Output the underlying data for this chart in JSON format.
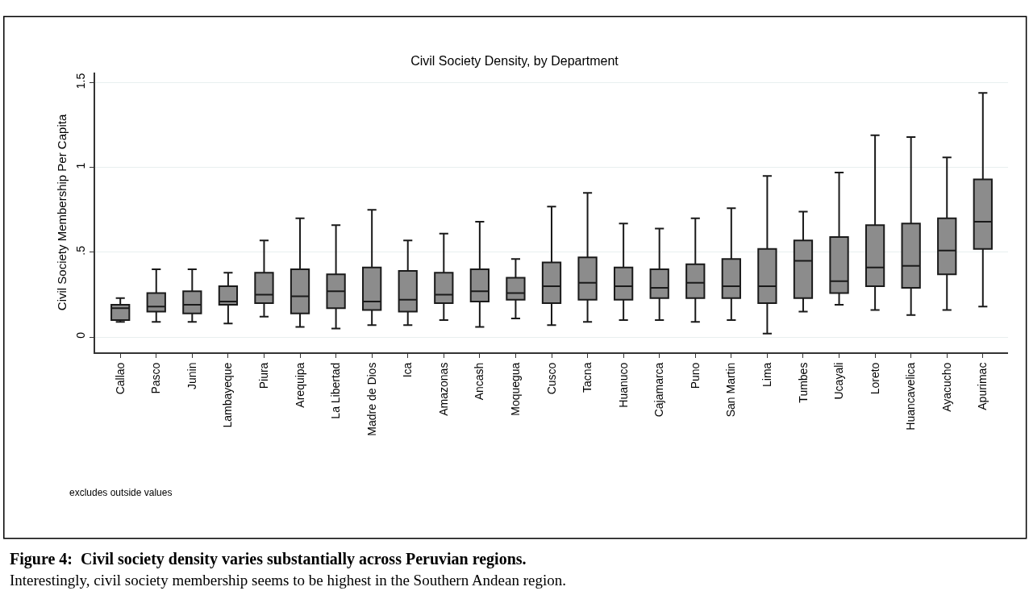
{
  "chart_data": {
    "type": "box",
    "title": "Civil Society Density, by Department",
    "ylabel": "Civil Society Membership Per Capita",
    "categories": [
      "Callao",
      "Pasco",
      "Junin",
      "Lambayeque",
      "Piura",
      "Arequipa",
      "La Libertad",
      "Madre de Dios",
      "Ica",
      "Amazonas",
      "Ancash",
      "Moquegua",
      "Cusco",
      "Tacna",
      "Huanuco",
      "Cajamarca",
      "Puno",
      "San Martin",
      "Lima",
      "Tumbes",
      "Ucayali",
      "Loreto",
      "Huancavelica",
      "Ayacucho",
      "Apurimac"
    ],
    "series": [
      {
        "color": "#8c8c8c",
        "boxes": [
          {
            "low": 0.09,
            "q1": 0.1,
            "median": 0.17,
            "q3": 0.19,
            "high": 0.23
          },
          {
            "low": 0.09,
            "q1": 0.15,
            "median": 0.18,
            "q3": 0.26,
            "high": 0.4
          },
          {
            "low": 0.09,
            "q1": 0.14,
            "median": 0.19,
            "q3": 0.27,
            "high": 0.4
          },
          {
            "low": 0.08,
            "q1": 0.19,
            "median": 0.21,
            "q3": 0.3,
            "high": 0.38
          },
          {
            "low": 0.12,
            "q1": 0.2,
            "median": 0.25,
            "q3": 0.38,
            "high": 0.57
          },
          {
            "low": 0.06,
            "q1": 0.14,
            "median": 0.24,
            "q3": 0.4,
            "high": 0.7
          },
          {
            "low": 0.05,
            "q1": 0.17,
            "median": 0.27,
            "q3": 0.37,
            "high": 0.66
          },
          {
            "low": 0.07,
            "q1": 0.16,
            "median": 0.21,
            "q3": 0.41,
            "high": 0.75
          },
          {
            "low": 0.07,
            "q1": 0.15,
            "median": 0.22,
            "q3": 0.39,
            "high": 0.57
          },
          {
            "low": 0.1,
            "q1": 0.2,
            "median": 0.25,
            "q3": 0.38,
            "high": 0.61
          },
          {
            "low": 0.06,
            "q1": 0.21,
            "median": 0.27,
            "q3": 0.4,
            "high": 0.68
          },
          {
            "low": 0.11,
            "q1": 0.22,
            "median": 0.26,
            "q3": 0.35,
            "high": 0.46
          },
          {
            "low": 0.07,
            "q1": 0.2,
            "median": 0.3,
            "q3": 0.44,
            "high": 0.77
          },
          {
            "low": 0.09,
            "q1": 0.22,
            "median": 0.32,
            "q3": 0.47,
            "high": 0.85
          },
          {
            "low": 0.1,
            "q1": 0.22,
            "median": 0.3,
            "q3": 0.41,
            "high": 0.67
          },
          {
            "low": 0.1,
            "q1": 0.23,
            "median": 0.29,
            "q3": 0.4,
            "high": 0.64
          },
          {
            "low": 0.09,
            "q1": 0.23,
            "median": 0.32,
            "q3": 0.43,
            "high": 0.7
          },
          {
            "low": 0.1,
            "q1": 0.23,
            "median": 0.3,
            "q3": 0.46,
            "high": 0.76
          },
          {
            "low": 0.02,
            "q1": 0.2,
            "median": 0.3,
            "q3": 0.52,
            "high": 0.95
          },
          {
            "low": 0.15,
            "q1": 0.23,
            "median": 0.45,
            "q3": 0.57,
            "high": 0.74
          },
          {
            "low": 0.19,
            "q1": 0.26,
            "median": 0.33,
            "q3": 0.59,
            "high": 0.97
          },
          {
            "low": 0.16,
            "q1": 0.3,
            "median": 0.41,
            "q3": 0.66,
            "high": 1.19
          },
          {
            "low": 0.13,
            "q1": 0.29,
            "median": 0.42,
            "q3": 0.67,
            "high": 1.18
          },
          {
            "low": 0.16,
            "q1": 0.37,
            "median": 0.51,
            "q3": 0.7,
            "high": 1.06
          },
          {
            "low": 0.18,
            "q1": 0.52,
            "median": 0.68,
            "q3": 0.93,
            "high": 1.44
          }
        ]
      }
    ],
    "ylim": [
      -0.09,
      1.56
    ],
    "yticks": [
      {
        "value": 0,
        "label": "0"
      },
      {
        "value": 0.5,
        "label": ".5"
      },
      {
        "value": 1,
        "label": "1"
      },
      {
        "value": 1.5,
        "label": "1.5"
      }
    ],
    "grid": "y",
    "annotations": [
      "excludes outside values",
      "Figure 4:  Civil society density varies substantially across Peruvian regions.",
      "Interestingly, civil society membership seems to be highest in the Southern Andean region."
    ]
  }
}
